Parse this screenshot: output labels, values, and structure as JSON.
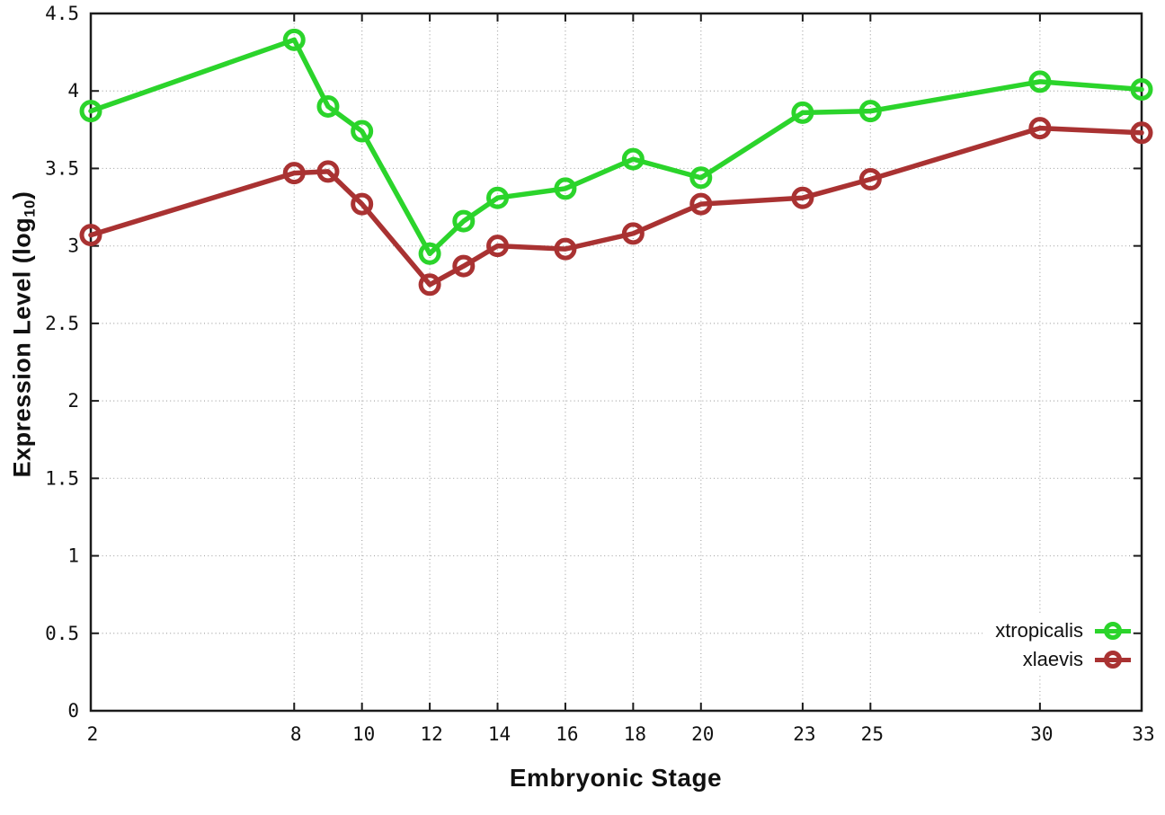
{
  "chart_data": {
    "type": "line",
    "xlabel": "Embryonic Stage",
    "ylabel": {
      "prefix": "Expression Level (log",
      "sub": "10",
      "suffix": ")"
    },
    "x": [
      2,
      8,
      9,
      10,
      12,
      13,
      14,
      16,
      18,
      20,
      23,
      25,
      30,
      33
    ],
    "series": [
      {
        "name": "xtropicalis",
        "color": "#2bd42b",
        "values": [
          3.87,
          4.33,
          3.9,
          3.74,
          2.95,
          3.16,
          3.31,
          3.37,
          3.56,
          3.44,
          3.86,
          3.87,
          4.06,
          4.01
        ]
      },
      {
        "name": "xlaevis",
        "color": "#a93232",
        "values": [
          3.07,
          3.47,
          3.48,
          3.27,
          2.75,
          2.87,
          3.0,
          2.98,
          3.08,
          3.27,
          3.31,
          3.43,
          3.76,
          3.73
        ]
      }
    ],
    "xticks": [
      2,
      8,
      10,
      12,
      14,
      16,
      18,
      20,
      23,
      25,
      30,
      33
    ],
    "yticks": [
      0,
      0.5,
      1,
      1.5,
      2,
      2.5,
      3,
      3.5,
      4,
      4.5
    ],
    "xlim": [
      2,
      33
    ],
    "ylim": [
      0,
      4.5
    ],
    "grid": true,
    "legend_position": "bottom-right",
    "colors": {
      "axis": "#1b1b1b",
      "grid": "#a8a8a8",
      "tick_text": "#111111"
    }
  }
}
